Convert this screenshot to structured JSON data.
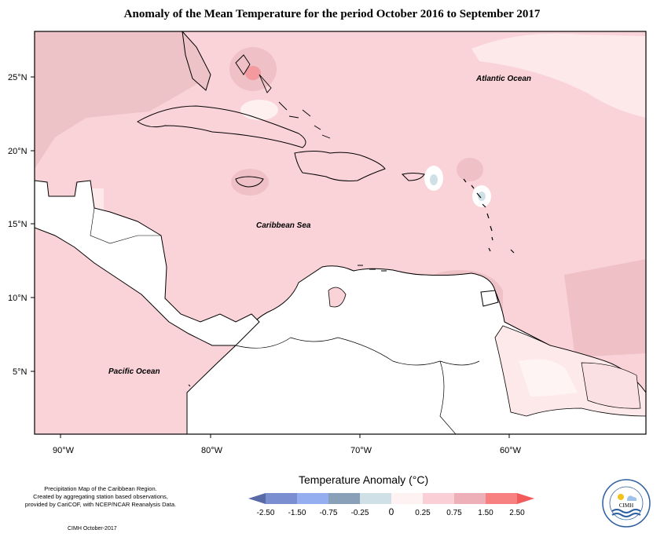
{
  "title": "Anomaly of the Mean Temperature for the period October 2016 to September 2017",
  "axes": {
    "lon_ticks": [
      "90°W",
      "80°W",
      "70°W",
      "60°W"
    ],
    "lat_ticks": [
      "25°N",
      "20°N",
      "15°N",
      "10°N",
      "5°N"
    ]
  },
  "labels": {
    "atlantic": "Atlantic Ocean",
    "caribbean": "Caribbean Sea",
    "pacific": "Pacific Ocean"
  },
  "legend": {
    "title": "Temperature Anomaly (°C)",
    "ticks": [
      "-2.50",
      "-1.50",
      "-0.75",
      "-0.25",
      "0",
      "0.25",
      "0.75",
      "1.50",
      "2.50"
    ],
    "colors": [
      "#5a6aa6",
      "#7b8fd0",
      "#95aef0",
      "#8aa0b8",
      "#cfe1e6",
      "#fff2f2",
      "#fad0d6",
      "#edb0b8",
      "#f78080",
      "#f25b5b"
    ]
  },
  "credits": {
    "line1": "Precipitation Map of the Caribbean Region.",
    "line2": "Created by aggregating station based observations,",
    "line3": "provided by CariCOF, with NCEP/NCAR Reanalysis Data.",
    "version": "CIMH October-2017"
  },
  "logo": {
    "text": "CIMH",
    "ring_text": "Caribbean Institute for Meteorology and Hydrology"
  }
}
